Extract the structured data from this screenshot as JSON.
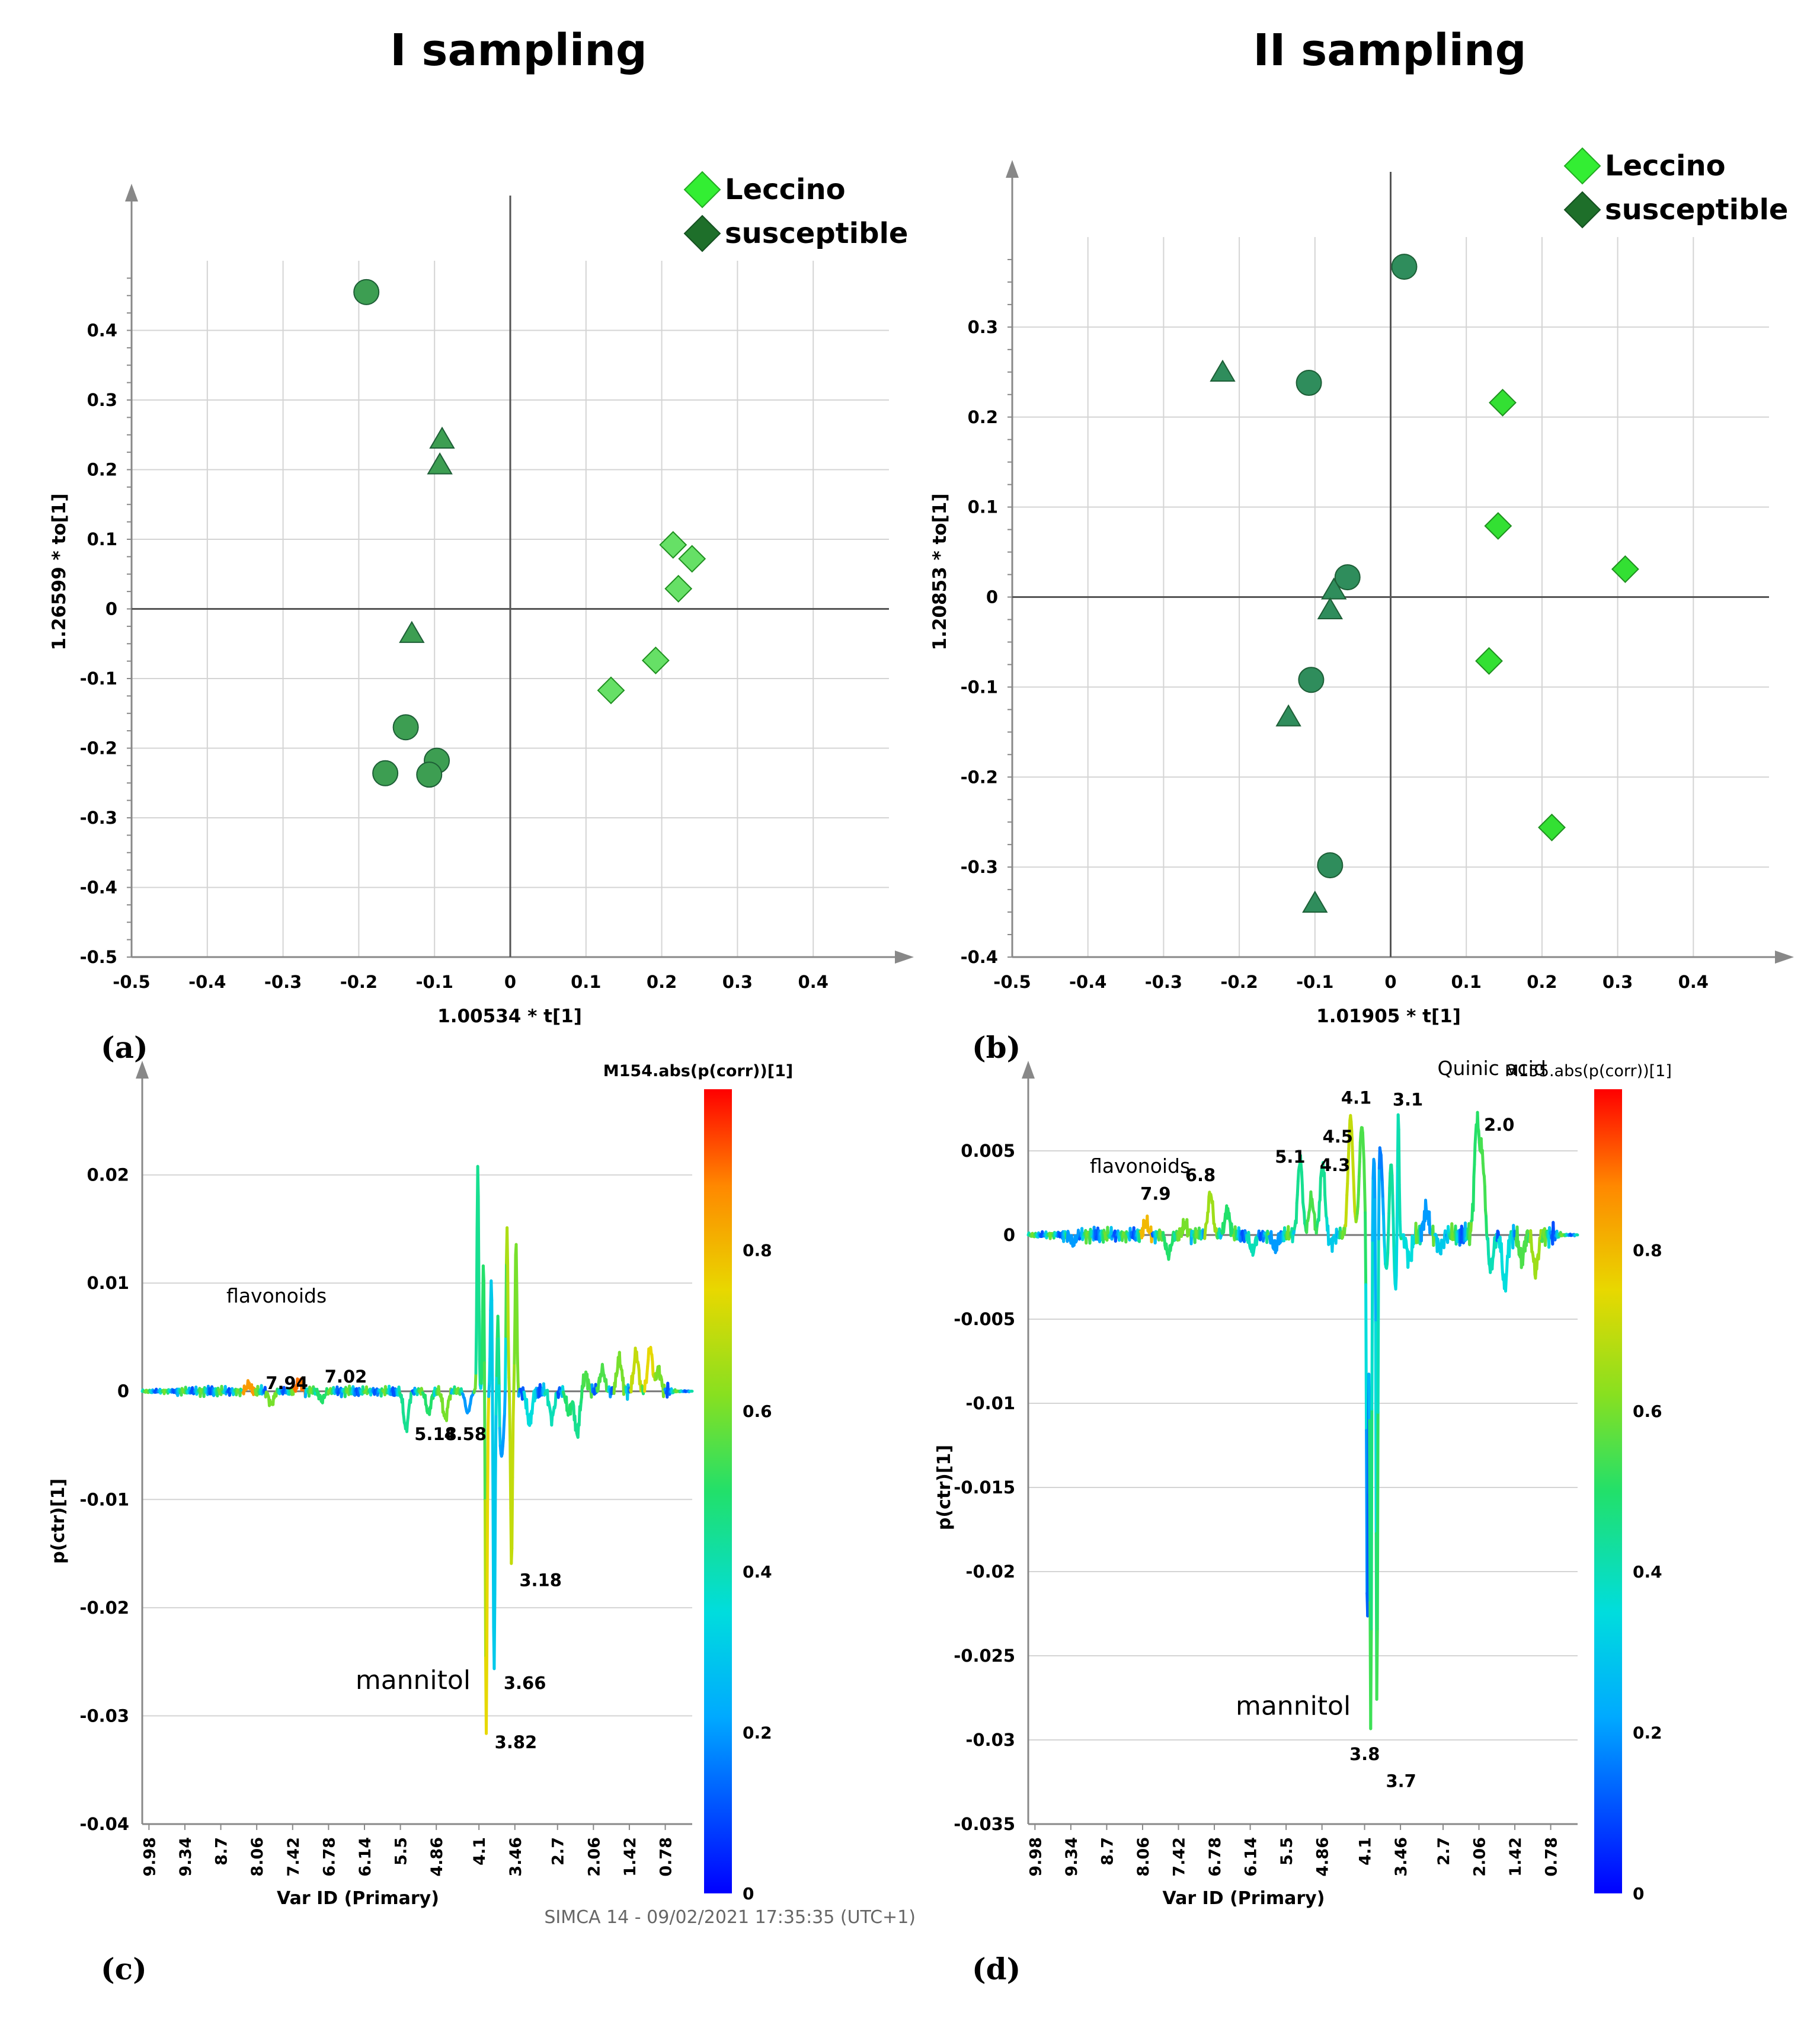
{
  "headings": {
    "left": "I sampling",
    "right": "II sampling"
  },
  "footer": "SIMCA 14 - 09/02/2021 17:35:35 (UTC+1)",
  "colors": {
    "leccino": "#33dd33",
    "susceptible": "#1e7a3a",
    "circle": "#3aa55a",
    "triangle": "#2f9a5a"
  },
  "chart_data": [
    {
      "id": "a",
      "panel_label": "(a)",
      "type": "scatter",
      "xlabel": "1.00534 * t[1]",
      "ylabel": "1.26599 * to[1]",
      "xlim": [
        -0.5,
        0.5
      ],
      "ylim": [
        -0.5,
        0.5
      ],
      "xticks": [
        -0.5,
        -0.4,
        -0.3,
        -0.2,
        -0.1,
        0,
        0.1,
        0.2,
        0.3,
        0.4
      ],
      "yticks": [
        -0.5,
        -0.4,
        -0.3,
        -0.2,
        -0.1,
        0,
        0.1,
        0.2,
        0.3,
        0.4
      ],
      "xticklabels": [
        "-0.5",
        "-0.4",
        "-0.3",
        "-0.2",
        "-0.1",
        "0",
        "0.1",
        "0.2",
        "0.3",
        "0.4"
      ],
      "yticklabels": [
        "-0.5",
        "-0.4",
        "-0.3",
        "-0.2",
        "-0.1",
        "0",
        "0.1",
        "0.2",
        "0.3",
        "0.4"
      ],
      "grid": true,
      "legend": {
        "position": "top-right",
        "entries": [
          "Leccino",
          "susceptible"
        ]
      },
      "series": [
        {
          "name": "Leccino",
          "marker": "diamond",
          "points": [
            [
              0.215,
              0.092
            ],
            [
              0.24,
              0.072
            ],
            [
              0.222,
              0.029
            ],
            [
              0.192,
              -0.074
            ],
            [
              0.133,
              -0.117
            ]
          ]
        },
        {
          "name": "susceptible",
          "marker": "circle",
          "points": [
            [
              -0.19,
              0.455
            ],
            [
              -0.138,
              -0.17
            ],
            [
              -0.097,
              -0.218
            ],
            [
              -0.107,
              -0.238
            ],
            [
              -0.165,
              -0.236
            ]
          ]
        },
        {
          "name": "susceptible",
          "marker": "triangle",
          "points": [
            [
              -0.09,
              0.244
            ],
            [
              -0.093,
              0.207
            ],
            [
              -0.13,
              -0.035
            ]
          ]
        }
      ]
    },
    {
      "id": "b",
      "panel_label": "(b)",
      "type": "scatter",
      "xlabel": "1.01905 * t[1]",
      "ylabel": "1.20853 * to[1]",
      "xlim": [
        -0.5,
        0.5
      ],
      "ylim": [
        -0.4,
        0.4
      ],
      "xticks": [
        -0.5,
        -0.4,
        -0.3,
        -0.2,
        -0.1,
        0,
        0.1,
        0.2,
        0.3,
        0.4
      ],
      "yticks": [
        -0.4,
        -0.3,
        -0.2,
        -0.1,
        0,
        0.1,
        0.2,
        0.3
      ],
      "xticklabels": [
        "-0.5",
        "-0.4",
        "-0.3",
        "-0.2",
        "-0.1",
        "0",
        "0.1",
        "0.2",
        "0.3",
        "0.4"
      ],
      "yticklabels": [
        "-0.4",
        "-0.3",
        "-0.2",
        "-0.1",
        "0",
        "0.1",
        "0.2",
        "0.3"
      ],
      "grid": true,
      "legend": {
        "position": "top-right",
        "entries": [
          "Leccino",
          "susceptible"
        ]
      },
      "series": [
        {
          "name": "Leccino",
          "marker": "diamond",
          "points": [
            [
              0.148,
              0.216
            ],
            [
              0.142,
              0.079
            ],
            [
              0.31,
              0.031
            ],
            [
              0.13,
              -0.071
            ],
            [
              0.213,
              -0.256
            ]
          ]
        },
        {
          "name": "susceptible",
          "marker": "circle",
          "points": [
            [
              0.018,
              0.367
            ],
            [
              -0.108,
              0.238
            ],
            [
              -0.057,
              0.022
            ],
            [
              -0.105,
              -0.092
            ],
            [
              -0.08,
              -0.298
            ]
          ]
        },
        {
          "name": "susceptible",
          "marker": "triangle",
          "points": [
            [
              -0.222,
              0.25
            ],
            [
              -0.075,
              0.008
            ],
            [
              -0.08,
              -0.014
            ],
            [
              -0.135,
              -0.133
            ],
            [
              -0.1,
              -0.34
            ]
          ]
        }
      ]
    },
    {
      "id": "c",
      "panel_label": "(c)",
      "type": "line",
      "xlabel": "Var ID (Primary)",
      "ylabel": "p(ctr)[1]",
      "xlim": [
        10.1,
        0.3
      ],
      "ylim": [
        -0.04,
        0.03
      ],
      "xticks": [
        9.98,
        9.34,
        8.7,
        8.06,
        7.42,
        6.78,
        6.14,
        5.5,
        4.86,
        4.1,
        3.46,
        2.7,
        2.06,
        1.42,
        0.78
      ],
      "xticklabels": [
        "9.98",
        "9.34",
        "8.7",
        "8.06",
        "7.42",
        "6.78",
        "6.14",
        "5.5",
        "4.86",
        "4.1",
        "3.46",
        "2.7",
        "2.06",
        "1.42",
        "0.78"
      ],
      "yticks": [
        -0.04,
        -0.03,
        -0.02,
        -0.01,
        0,
        0.01,
        0.02
      ],
      "yticklabels": [
        "-0.04",
        "-0.03",
        "-0.02",
        "-0.01",
        "0",
        "0.01",
        "0.02"
      ],
      "grid": true,
      "colorbar": {
        "title": "M154.abs(p(corr))[1]",
        "range": [
          0,
          1
        ],
        "ticks": [
          0,
          0.2,
          0.4,
          0.6,
          0.8
        ],
        "ticklabels": [
          "0",
          "0.2",
          "0.4",
          "0.6",
          "0.8"
        ]
      },
      "peaks": [
        [
          8.2,
          0.0006,
          0.85
        ],
        [
          7.8,
          -0.0012,
          0.6
        ],
        [
          7.3,
          0.0009,
          0.9
        ],
        [
          6.9,
          -0.0008,
          0.5
        ],
        [
          5.4,
          -0.0035,
          0.45
        ],
        [
          5.0,
          -0.002,
          0.5
        ],
        [
          4.7,
          -0.0025,
          0.6
        ],
        [
          4.3,
          -0.002,
          0.2
        ],
        [
          4.12,
          0.021,
          0.45
        ],
        [
          4.02,
          0.012,
          0.5
        ],
        [
          3.97,
          -0.0315,
          0.75
        ],
        [
          3.88,
          0.0105,
          0.3
        ],
        [
          3.83,
          -0.026,
          0.3
        ],
        [
          3.76,
          0.009,
          0.6
        ],
        [
          3.7,
          -0.006,
          0.2
        ],
        [
          3.6,
          0.0155,
          0.7
        ],
        [
          3.52,
          -0.0163,
          0.7
        ],
        [
          3.44,
          0.014,
          0.6
        ],
        [
          3.2,
          -0.003,
          0.35
        ],
        [
          2.8,
          -0.0025,
          0.4
        ],
        [
          2.5,
          -0.002,
          0.5
        ],
        [
          2.35,
          -0.004,
          0.45
        ],
        [
          2.2,
          0.0015,
          0.55
        ],
        [
          1.9,
          0.002,
          0.55
        ],
        [
          1.6,
          0.003,
          0.6
        ],
        [
          1.3,
          0.0035,
          0.7
        ],
        [
          1.05,
          0.004,
          0.75
        ],
        [
          0.9,
          0.002,
          0.6
        ]
      ],
      "annotations": [
        {
          "text": "flavonoids",
          "x": 8.6,
          "y": 0.0082,
          "style": "normal"
        },
        {
          "text": "7.94",
          "x": 7.9,
          "y": 0.0002,
          "style": "bold"
        },
        {
          "text": "7.02",
          "x": 6.85,
          "y": 0.0008,
          "style": "bold"
        },
        {
          "text": "5.18",
          "x": 5.25,
          "y": -0.0045,
          "style": "bold"
        },
        {
          "text": "4.58",
          "x": 4.72,
          "y": -0.0045,
          "style": "bold"
        },
        {
          "text": "3.18",
          "x": 3.38,
          "y": -0.018,
          "style": "bold"
        },
        {
          "text": "3.66",
          "x": 3.66,
          "y": -0.0275,
          "style": "bold"
        },
        {
          "text": "3.82",
          "x": 3.82,
          "y": -0.033,
          "style": "bold"
        },
        {
          "text": "mannitol",
          "x": 6.3,
          "y": -0.0275,
          "style": "large"
        }
      ]
    },
    {
      "id": "d",
      "panel_label": "(d)",
      "type": "line",
      "xlabel": "Var ID (Primary)",
      "ylabel": "p(ctr)[1]",
      "xlim": [
        10.1,
        0.3
      ],
      "ylim": [
        -0.035,
        0.01
      ],
      "xticks": [
        9.98,
        9.34,
        8.7,
        8.06,
        7.42,
        6.78,
        6.14,
        5.5,
        4.86,
        4.1,
        3.46,
        2.7,
        2.06,
        1.42,
        0.78
      ],
      "xticklabels": [
        "9.98",
        "9.34",
        "8.7",
        "8.06",
        "7.42",
        "6.78",
        "6.14",
        "5.5",
        "4.86",
        "4.1",
        "3.46",
        "2.7",
        "2.06",
        "1.42",
        "0.78"
      ],
      "yticks": [
        -0.035,
        -0.03,
        -0.025,
        -0.02,
        -0.015,
        -0.01,
        -0.005,
        0,
        0.005
      ],
      "yticklabels": [
        "-0.035",
        "-0.03",
        "-0.025",
        "-0.02",
        "-0.015",
        "-0.01",
        "-0.005",
        "0",
        "0.005"
      ],
      "grid": true,
      "colorbar": {
        "title": "M155.abs(p(corr))[1]",
        "range": [
          0,
          1
        ],
        "ticks": [
          0,
          0.2,
          0.4,
          0.6,
          0.8
        ],
        "ticklabels": [
          "0",
          "0.2",
          "0.4",
          "0.6",
          "0.8"
        ]
      },
      "peaks": [
        [
          9.3,
          -0.0005,
          0.2
        ],
        [
          8.0,
          0.0007,
          0.8
        ],
        [
          7.6,
          -0.0012,
          0.5
        ],
        [
          7.3,
          0.0006,
          0.6
        ],
        [
          6.85,
          0.0025,
          0.65
        ],
        [
          6.55,
          0.0015,
          0.5
        ],
        [
          6.1,
          -0.001,
          0.4
        ],
        [
          5.7,
          -0.0008,
          0.2
        ],
        [
          5.25,
          0.0045,
          0.45
        ],
        [
          5.05,
          0.0022,
          0.55
        ],
        [
          4.85,
          0.0042,
          0.45
        ],
        [
          4.7,
          -0.0005,
          0.3
        ],
        [
          4.35,
          0.007,
          0.7
        ],
        [
          4.15,
          0.0065,
          0.55
        ],
        [
          4.05,
          -0.024,
          0.1
        ],
        [
          3.99,
          -0.031,
          0.65
        ],
        [
          3.93,
          0.0045,
          0.2
        ],
        [
          3.88,
          -0.032,
          0.85
        ],
        [
          3.82,
          0.005,
          0.15
        ],
        [
          3.7,
          -0.003,
          0.4
        ],
        [
          3.62,
          0.0065,
          0.5
        ],
        [
          3.56,
          -0.005,
          0.3
        ],
        [
          3.5,
          0.009,
          0.45
        ],
        [
          3.3,
          -0.0015,
          0.35
        ],
        [
          3.0,
          0.0015,
          0.2
        ],
        [
          2.75,
          -0.0008,
          0.3
        ],
        [
          2.1,
          0.0065,
          0.5
        ],
        [
          2.0,
          0.0045,
          0.55
        ],
        [
          1.85,
          -0.002,
          0.4
        ],
        [
          1.6,
          -0.003,
          0.35
        ],
        [
          1.3,
          -0.0015,
          0.55
        ],
        [
          1.05,
          -0.0022,
          0.65
        ]
      ],
      "annotations": [
        {
          "text": "Quinic acid",
          "x": 2.8,
          "y": 0.0095,
          "style": "normal"
        },
        {
          "text": "flavonoids",
          "x": 9.0,
          "y": 0.0037,
          "style": "normal"
        },
        {
          "text": "7.9",
          "x": 8.1,
          "y": 0.0021,
          "style": "bold"
        },
        {
          "text": "6.8",
          "x": 7.3,
          "y": 0.0032,
          "style": "bold"
        },
        {
          "text": "5.1",
          "x": 5.7,
          "y": 0.0043,
          "style": "bold"
        },
        {
          "text": "4.5",
          "x": 4.85,
          "y": 0.0055,
          "style": "bold"
        },
        {
          "text": "4.3",
          "x": 4.9,
          "y": 0.0038,
          "style": "bold"
        },
        {
          "text": "4.1",
          "x": 4.52,
          "y": 0.0078,
          "style": "bold"
        },
        {
          "text": "3.1",
          "x": 3.6,
          "y": 0.0077,
          "style": "bold"
        },
        {
          "text": "2.0",
          "x": 1.97,
          "y": 0.0062,
          "style": "bold"
        },
        {
          "text": "3.8",
          "x": 4.37,
          "y": -0.0312,
          "style": "bold"
        },
        {
          "text": "3.7",
          "x": 3.72,
          "y": -0.0328,
          "style": "bold"
        },
        {
          "text": "mannitol",
          "x": 6.4,
          "y": -0.0285,
          "style": "large"
        }
      ]
    }
  ]
}
